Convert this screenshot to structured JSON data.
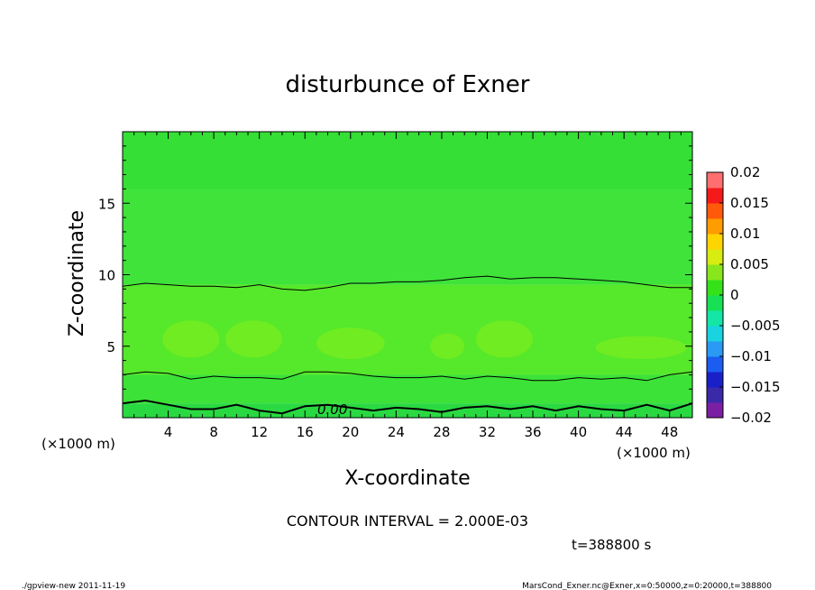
{
  "footer": {
    "left": "./gpview-new   2011-11-19",
    "right": "MarsCond_Exner.nc@Exner,x=0:50000,z=0:20000,t=388800"
  },
  "chart_data": {
    "type": "heatmap",
    "title": "disturbunce of Exner",
    "xlabel": "X-coordinate",
    "ylabel": "Z-coordinate",
    "x_unit_left": "(×1000 m)",
    "x_unit_right": "(×1000 m)",
    "xlim": [
      0,
      50
    ],
    "ylim": [
      0,
      20
    ],
    "x_ticks": [
      4,
      8,
      12,
      16,
      20,
      24,
      28,
      32,
      36,
      40,
      44,
      48
    ],
    "y_ticks": [
      5,
      10,
      15
    ],
    "contour_interval_text": "CONTOUR INTERVAL = 2.000E-03",
    "time_text": "t=388800 s",
    "contour_label": "0.00",
    "colorbar": {
      "ticks": [
        "0.02",
        "0.015",
        "0.01",
        "0.005",
        "0",
        "−0.005",
        "−0.01",
        "−0.015",
        "−0.02"
      ],
      "range": [
        -0.02,
        0.02
      ],
      "colors": [
        "#7b1fa2",
        "#3a2aa8",
        "#1a20c8",
        "#1b5df0",
        "#2a9af5",
        "#19d3e0",
        "#14e6a6",
        "#18e055",
        "#35e21a",
        "#8ae61c",
        "#d8ec12",
        "#ffd400",
        "#ff9c00",
        "#ff5a0a",
        "#f41a1a",
        "#ff6f6f"
      ]
    },
    "field_bands": [
      {
        "name": "upper band",
        "z_range": [
          9.3,
          20
        ],
        "value": 0.0015,
        "color": "#3fe33a"
      },
      {
        "name": "top layer",
        "z_range": [
          16,
          20
        ],
        "value": 0.0005,
        "color": "#35df36"
      },
      {
        "name": "middle band",
        "z_range": [
          3,
          9.3
        ],
        "value": 0.0035,
        "color": "#56e82a"
      },
      {
        "name": "lower band",
        "z_range": [
          1,
          3
        ],
        "value": 0.0015,
        "color": "#3ce237"
      },
      {
        "name": "near-surface band",
        "z_range": [
          0,
          1
        ],
        "value": -0.0005,
        "color": "#2ad942"
      }
    ],
    "patches": [
      {
        "x": 6,
        "z": 5.5,
        "rx": 2.5,
        "rz": 1.3
      },
      {
        "x": 11.5,
        "z": 5.5,
        "rx": 2.5,
        "rz": 1.3
      },
      {
        "x": 20,
        "z": 5.2,
        "rx": 3,
        "rz": 1.1
      },
      {
        "x": 28.5,
        "z": 5.0,
        "rx": 1.5,
        "rz": 0.9
      },
      {
        "x": 33.5,
        "z": 5.5,
        "rx": 2.5,
        "rz": 1.3
      },
      {
        "x": 45.5,
        "z": 4.9,
        "rx": 4,
        "rz": 0.8
      }
    ],
    "contours": [
      {
        "level": 0.002,
        "x": [
          0,
          2,
          4,
          6,
          8,
          10,
          12,
          14,
          16,
          18,
          20,
          22,
          24,
          26,
          28,
          30,
          32,
          34,
          36,
          38,
          40,
          42,
          44,
          46,
          48,
          50
        ],
        "z": [
          9.2,
          9.4,
          9.3,
          9.2,
          9.2,
          9.1,
          9.3,
          9.0,
          8.9,
          9.1,
          9.4,
          9.4,
          9.5,
          9.5,
          9.6,
          9.8,
          9.9,
          9.7,
          9.8,
          9.8,
          9.7,
          9.6,
          9.5,
          9.3,
          9.1,
          9.1
        ]
      },
      {
        "level": 0.002,
        "x": [
          0,
          2,
          4,
          6,
          8,
          10,
          12,
          14,
          16,
          18,
          20,
          22,
          24,
          26,
          28,
          30,
          32,
          34,
          36,
          38,
          40,
          42,
          44,
          46,
          48,
          50
        ],
        "z": [
          3.0,
          3.2,
          3.1,
          2.7,
          2.9,
          2.8,
          2.8,
          2.7,
          3.2,
          3.2,
          3.1,
          2.9,
          2.8,
          2.8,
          2.9,
          2.7,
          2.9,
          2.8,
          2.6,
          2.6,
          2.8,
          2.7,
          2.8,
          2.6,
          3.0,
          3.2
        ]
      },
      {
        "level": 0.0,
        "x": [
          0,
          2,
          4,
          6,
          8,
          10,
          12,
          14,
          16,
          18,
          20,
          22,
          24,
          26,
          28,
          30,
          32,
          34,
          36,
          38,
          40,
          42,
          44,
          46,
          48,
          50
        ],
        "z": [
          1.0,
          1.2,
          0.9,
          0.6,
          0.6,
          0.9,
          0.5,
          0.3,
          0.8,
          0.9,
          0.7,
          0.5,
          0.7,
          0.6,
          0.4,
          0.7,
          0.8,
          0.6,
          0.8,
          0.5,
          0.8,
          0.6,
          0.5,
          0.9,
          0.5,
          1.0
        ]
      }
    ]
  }
}
